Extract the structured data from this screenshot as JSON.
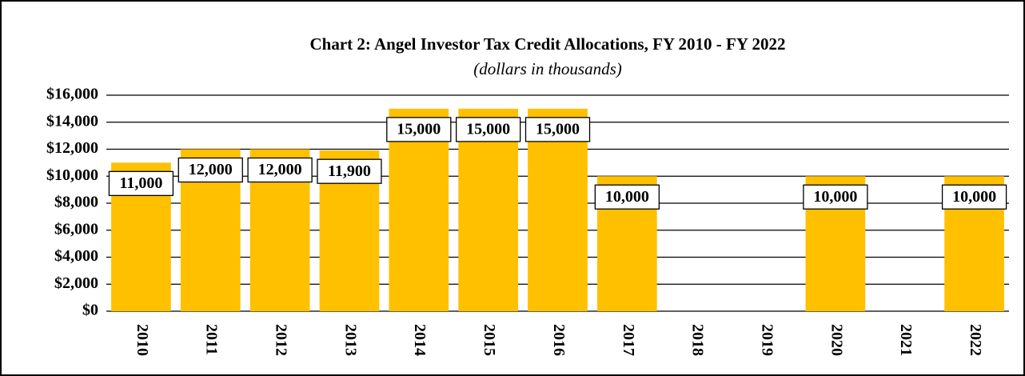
{
  "chart_data": {
    "type": "bar",
    "title": "Chart 2: Angel Investor Tax Credit Allocations, FY 2010 - FY 2022",
    "subtitle": "(dollars in thousands)",
    "categories": [
      "2010",
      "2011",
      "2012",
      "2013",
      "2014",
      "2015",
      "2016",
      "2017",
      "2018",
      "2019",
      "2020",
      "2021",
      "2022"
    ],
    "values": [
      11000,
      12000,
      12000,
      11900,
      15000,
      15000,
      15000,
      10000,
      null,
      null,
      10000,
      null,
      10000
    ],
    "value_labels": [
      "11,000",
      "12,000",
      "12,000",
      "11,900",
      "15,000",
      "15,000",
      "15,000",
      "10,000",
      null,
      null,
      "10,000",
      null,
      "10,000"
    ],
    "color": "#FFC000",
    "ylim": [
      0,
      16000
    ],
    "yticks": [
      {
        "value": 0,
        "label": "$0"
      },
      {
        "value": 2000,
        "label": "$2,000"
      },
      {
        "value": 4000,
        "label": "$4,000"
      },
      {
        "value": 6000,
        "label": "$6,000"
      },
      {
        "value": 8000,
        "label": "$8,000"
      },
      {
        "value": 10000,
        "label": "$10,000"
      },
      {
        "value": 12000,
        "label": "$12,000"
      },
      {
        "value": 14000,
        "label": "$14,000"
      },
      {
        "value": 16000,
        "label": "$16,000"
      }
    ],
    "grid": true
  }
}
